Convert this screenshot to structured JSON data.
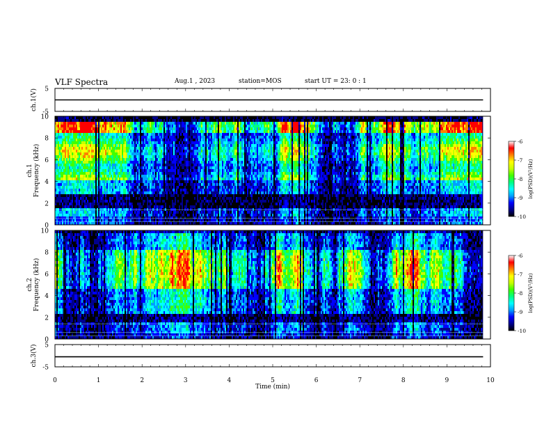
{
  "header": {
    "title": "VLF Spectra",
    "date": "Aug.1 , 2023",
    "station": "station=MOS",
    "start_ut": "start UT = 23: 0 : 1"
  },
  "chart_data": [
    {
      "type": "line",
      "panel": "ch1-waveform",
      "ylabel": "ch.1(V)",
      "ylim": [
        -5,
        5
      ],
      "yticks": [
        5,
        -5
      ],
      "x": [
        0,
        9.83
      ],
      "series": [
        {
          "values": [
            0,
            0
          ]
        }
      ]
    },
    {
      "type": "heatmap",
      "panel": "ch1-spectrogram",
      "ylabel": "ch.1\nFrequency (kHz)",
      "ylim": [
        0,
        10
      ],
      "yticks": [
        0,
        2,
        4,
        6,
        8,
        10
      ],
      "xlim": [
        0,
        9.83
      ],
      "dominant_band_khz": [
        4,
        9.5
      ],
      "colorbar": {
        "label": "log(PSD)(V²/Hz)",
        "range": [
          -10,
          -6
        ],
        "ticks": [
          -6,
          -7,
          -8,
          -9,
          -10
        ]
      }
    },
    {
      "type": "heatmap",
      "panel": "ch2-spectrogram",
      "ylabel": "ch.2\nFrequency (kHz)",
      "ylim": [
        0,
        10
      ],
      "yticks": [
        0,
        2,
        4,
        6,
        8,
        10
      ],
      "xlim": [
        0,
        9.83
      ],
      "dominant_band_khz": [
        4,
        8
      ],
      "colorbar": {
        "label": "log(PSD)(V²/Hz)",
        "range": [
          -10,
          -6
        ],
        "ticks": [
          -6,
          -7,
          -8,
          -9,
          -10
        ]
      }
    },
    {
      "type": "line",
      "panel": "ch3-waveform",
      "ylabel": "ch.3(V)",
      "ylim": [
        -5,
        5
      ],
      "yticks": [
        5,
        -5
      ],
      "x": [
        0,
        9.83
      ],
      "series": [
        {
          "values": [
            -0.5,
            -0.5
          ]
        }
      ]
    }
  ],
  "x_axis": {
    "label": "Time (min)",
    "range": [
      0,
      10
    ],
    "ticks": [
      "0",
      "1",
      "2",
      "3",
      "4",
      "5",
      "6",
      "7",
      "8",
      "9",
      "10"
    ]
  },
  "colormap": [
    "#000000",
    "#00008c",
    "#0000ff",
    "#00a0ff",
    "#00ffff",
    "#00ff80",
    "#40ff00",
    "#c8ff00",
    "#ffff00",
    "#ff8000",
    "#ff0000",
    "#ffffff"
  ]
}
